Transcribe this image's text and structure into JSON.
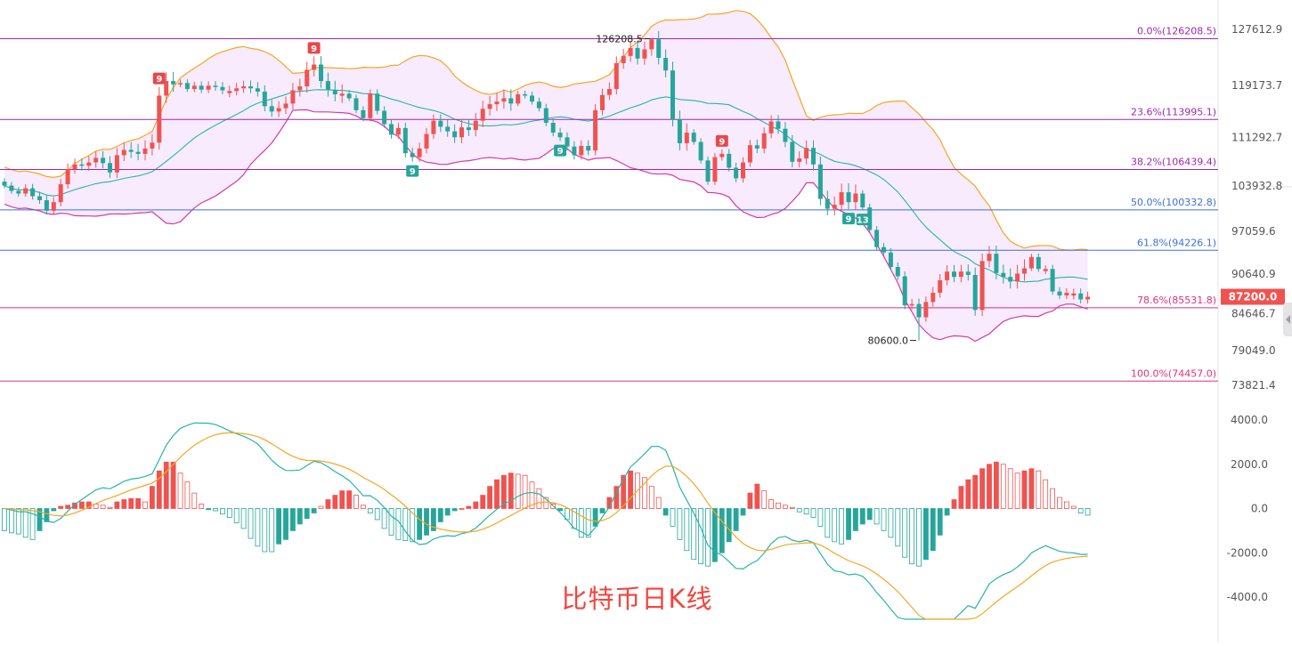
{
  "chart_data": [
    {
      "type": "candlestick",
      "panel": "price",
      "yticks": [
        127612.9,
        119173.7,
        111292.7,
        103932.8,
        97059.6,
        90640.9,
        84646.7,
        79049.0,
        73821.4
      ],
      "last_price": "87200.0",
      "fib_levels": [
        {
          "label": "0.0%(126208.5)",
          "value": 126208.5,
          "color": "#9c27b0"
        },
        {
          "label": "23.6%(113995.1)",
          "value": 113995.1,
          "color": "#9c27b0"
        },
        {
          "label": "38.2%(106439.4)",
          "value": 106439.4,
          "color": "#9c27b0"
        },
        {
          "label": "50.0%(100332.8)",
          "value": 100332.8,
          "color": "#3f6fd8"
        },
        {
          "label": "61.8%(94226.1)",
          "value": 94226.1,
          "color": "#3f6fd8"
        },
        {
          "label": "78.6%(85531.8)",
          "value": 85531.8,
          "color": "#d63384"
        },
        {
          "label": "100.0%(74457.0)",
          "value": 74457.0,
          "color": "#d63384"
        }
      ],
      "annotations": [
        {
          "text": "126208.5",
          "value": 126208.5,
          "kind": "high"
        },
        {
          "text": "80600.0",
          "value": 80600.0,
          "kind": "low"
        }
      ],
      "td_markers": [
        {
          "text": "9",
          "type": "sell",
          "index": 22
        },
        {
          "text": "9",
          "type": "sell",
          "index": 44
        },
        {
          "text": "9",
          "type": "buy",
          "index": 58
        },
        {
          "text": "9",
          "type": "buy",
          "index": 79
        },
        {
          "text": "9",
          "type": "sell",
          "index": 102
        },
        {
          "text": "9",
          "type": "buy",
          "index": 120
        },
        {
          "text": "13",
          "type": "buy",
          "index": 122
        }
      ],
      "close": [
        104000,
        103200,
        102800,
        103600,
        102400,
        101800,
        100200,
        101500,
        104200,
        106500,
        107200,
        107000,
        107500,
        108200,
        107400,
        106000,
        108600,
        109400,
        109100,
        108800,
        109600,
        110500,
        117600,
        119800,
        119300,
        119500,
        118600,
        119100,
        118500,
        119100,
        118900,
        118400,
        118300,
        118700,
        119000,
        118700,
        118200,
        116000,
        115200,
        115700,
        116400,
        118400,
        119000,
        121500,
        122300,
        119800,
        118500,
        117800,
        117900,
        117200,
        115400,
        114200,
        117900,
        115300,
        113300,
        111700,
        112700,
        108900,
        108300,
        109600,
        111800,
        113800,
        112900,
        112200,
        111300,
        112800,
        112400,
        113800,
        115600,
        116300,
        116700,
        117200,
        116400,
        117800,
        117600,
        116700,
        115700,
        113500,
        112000,
        111300,
        109900,
        108600,
        110000,
        109300,
        115400,
        117700,
        118600,
        122500,
        123600,
        124800,
        123200,
        124600,
        126100,
        123300,
        121400,
        114000,
        110400,
        112000,
        110600,
        107800,
        104600,
        108300,
        108800,
        106700,
        105100,
        107500,
        110100,
        109600,
        111900,
        113700,
        112600,
        110600,
        107600,
        108100,
        109700,
        107200,
        102000,
        100500,
        101100,
        103000,
        101500,
        102800,
        100700,
        97300,
        94700,
        93900,
        91700,
        90300,
        85900,
        86100,
        84100,
        86400,
        87800,
        89700,
        91000,
        90200,
        91000,
        90500,
        85200,
        92600,
        93700,
        90800,
        90200,
        89500,
        90700,
        91500,
        93200,
        91400,
        91400,
        88000,
        87400,
        87800,
        87700,
        86800,
        87200
      ]
    },
    {
      "type": "macd",
      "panel": "indicator",
      "yticks": [
        4000.0,
        2000.0,
        0.0,
        -2000.0,
        -4000.0
      ],
      "histogram": [
        -1000,
        -1100,
        -1150,
        -1300,
        -1400,
        -1000,
        -600,
        -100,
        100,
        150,
        250,
        300,
        300,
        200,
        150,
        50,
        300,
        400,
        450,
        450,
        300,
        1000,
        1700,
        2100,
        2100,
        1600,
        1200,
        700,
        200,
        -50,
        -100,
        -250,
        -400,
        -650,
        -900,
        -1350,
        -1700,
        -1950,
        -1950,
        -1600,
        -1400,
        -1000,
        -700,
        -450,
        -200,
        100,
        400,
        600,
        800,
        800,
        600,
        150,
        -200,
        -500,
        -900,
        -1200,
        -1400,
        -1450,
        -1500,
        -1400,
        -1200,
        -1000,
        -600,
        -300,
        -100,
        0,
        100,
        300,
        600,
        1000,
        1300,
        1500,
        1600,
        1550,
        1500,
        1200,
        900,
        500,
        200,
        -100,
        -500,
        -900,
        -1300,
        -1300,
        -800,
        -200,
        500,
        1000,
        1500,
        1700,
        1600,
        1400,
        1000,
        500,
        -300,
        -800,
        -1400,
        -1900,
        -2300,
        -2500,
        -2600,
        -2400,
        -2000,
        -1500,
        -1000,
        -300,
        700,
        1100,
        800,
        400,
        250,
        150,
        50,
        -150,
        -250,
        -400,
        -800,
        -1300,
        -1500,
        -1600,
        -1400,
        -1000,
        -700,
        -500,
        -700,
        -1000,
        -1300,
        -1700,
        -2200,
        -2500,
        -2600,
        -2300,
        -1900,
        -1200,
        -300,
        400,
        1000,
        1300,
        1500,
        1800,
        2000,
        2100,
        2000,
        1800,
        1600,
        1700,
        1800,
        1700,
        1300,
        900,
        500,
        300,
        100,
        -200,
        -300
      ]
    }
  ],
  "caption": "比特币日K线"
}
